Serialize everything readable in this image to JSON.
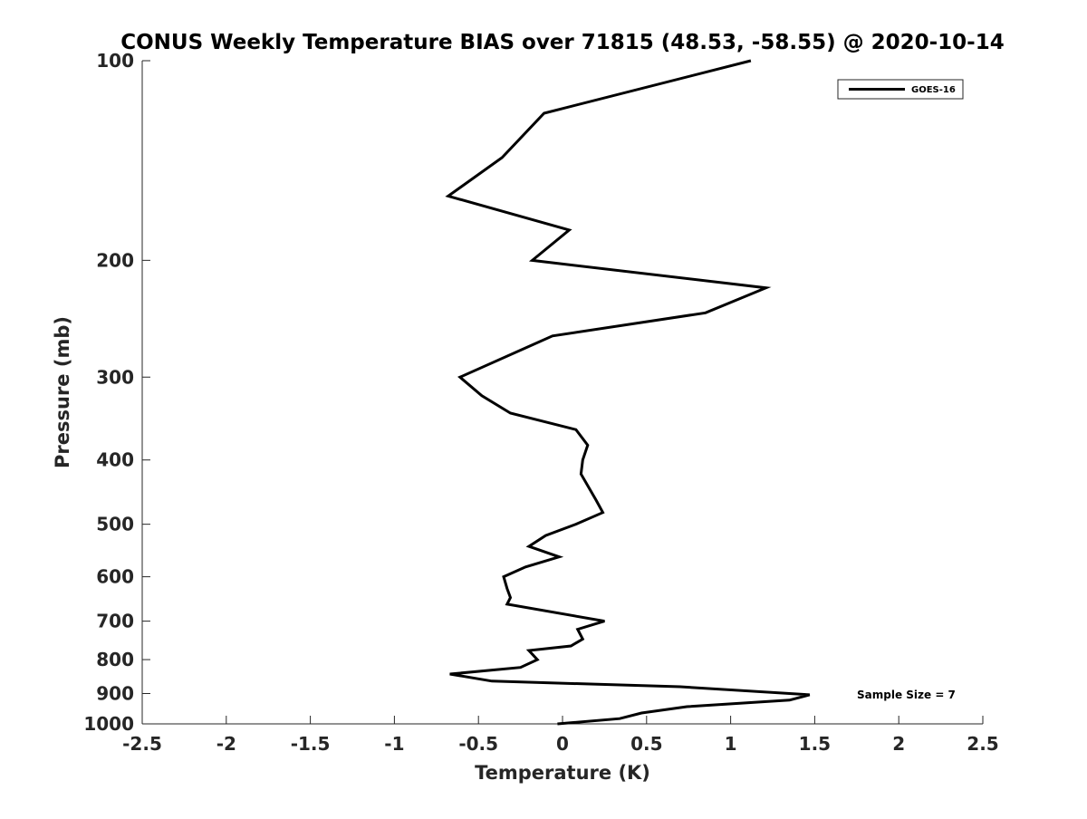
{
  "chart_data": {
    "type": "line",
    "title": "CONUS Weekly Temperature BIAS over 71815 (48.53, -58.55) @ 2020-10-14",
    "xlabel": "Temperature (K)",
    "ylabel": "Pressure (mb)",
    "xlim": [
      -2.5,
      2.5
    ],
    "ylim": [
      100,
      1000
    ],
    "yscale": "log",
    "yreverse": true,
    "grid": false,
    "xticks": [
      "-2.5",
      "-2",
      "-1.5",
      "-1",
      "-0.5",
      "0",
      "0.5",
      "1",
      "1.5",
      "2",
      "2.5"
    ],
    "yticks": [
      "100",
      "200",
      "300",
      "400",
      "500",
      "600",
      "700",
      "800",
      "900",
      "1000"
    ],
    "legend": {
      "placement": "top-right",
      "entries": [
        "GOES-16"
      ]
    },
    "annotation": "Sample Size = 7",
    "series": [
      {
        "name": "GOES-16",
        "color": "#000000",
        "points": [
          [
            1.12,
            100
          ],
          [
            -0.11,
            120
          ],
          [
            -0.36,
            140
          ],
          [
            -0.68,
            160
          ],
          [
            0.04,
            180
          ],
          [
            -0.18,
            200
          ],
          [
            1.21,
            220
          ],
          [
            0.85,
            240
          ],
          [
            -0.06,
            260
          ],
          [
            -0.61,
            300
          ],
          [
            -0.48,
            320
          ],
          [
            -0.31,
            340
          ],
          [
            0.08,
            360
          ],
          [
            0.15,
            380
          ],
          [
            0.12,
            400
          ],
          [
            0.11,
            420
          ],
          [
            0.2,
            460
          ],
          [
            0.24,
            480
          ],
          [
            0.08,
            500
          ],
          [
            -0.1,
            520
          ],
          [
            -0.2,
            540
          ],
          [
            -0.02,
            560
          ],
          [
            -0.22,
            580
          ],
          [
            -0.35,
            600
          ],
          [
            -0.33,
            625
          ],
          [
            -0.31,
            645
          ],
          [
            -0.33,
            660
          ],
          [
            0.25,
            700
          ],
          [
            0.09,
            720
          ],
          [
            0.12,
            745
          ],
          [
            0.05,
            763
          ],
          [
            -0.2,
            775
          ],
          [
            -0.15,
            800
          ],
          [
            -0.25,
            822
          ],
          [
            -0.67,
            841
          ],
          [
            -0.42,
            862
          ],
          [
            0.7,
            879
          ],
          [
            1.47,
            904
          ],
          [
            1.35,
            921
          ],
          [
            0.74,
            942
          ],
          [
            0.47,
            963
          ],
          [
            0.34,
            982
          ],
          [
            -0.03,
            1000
          ]
        ]
      }
    ]
  }
}
